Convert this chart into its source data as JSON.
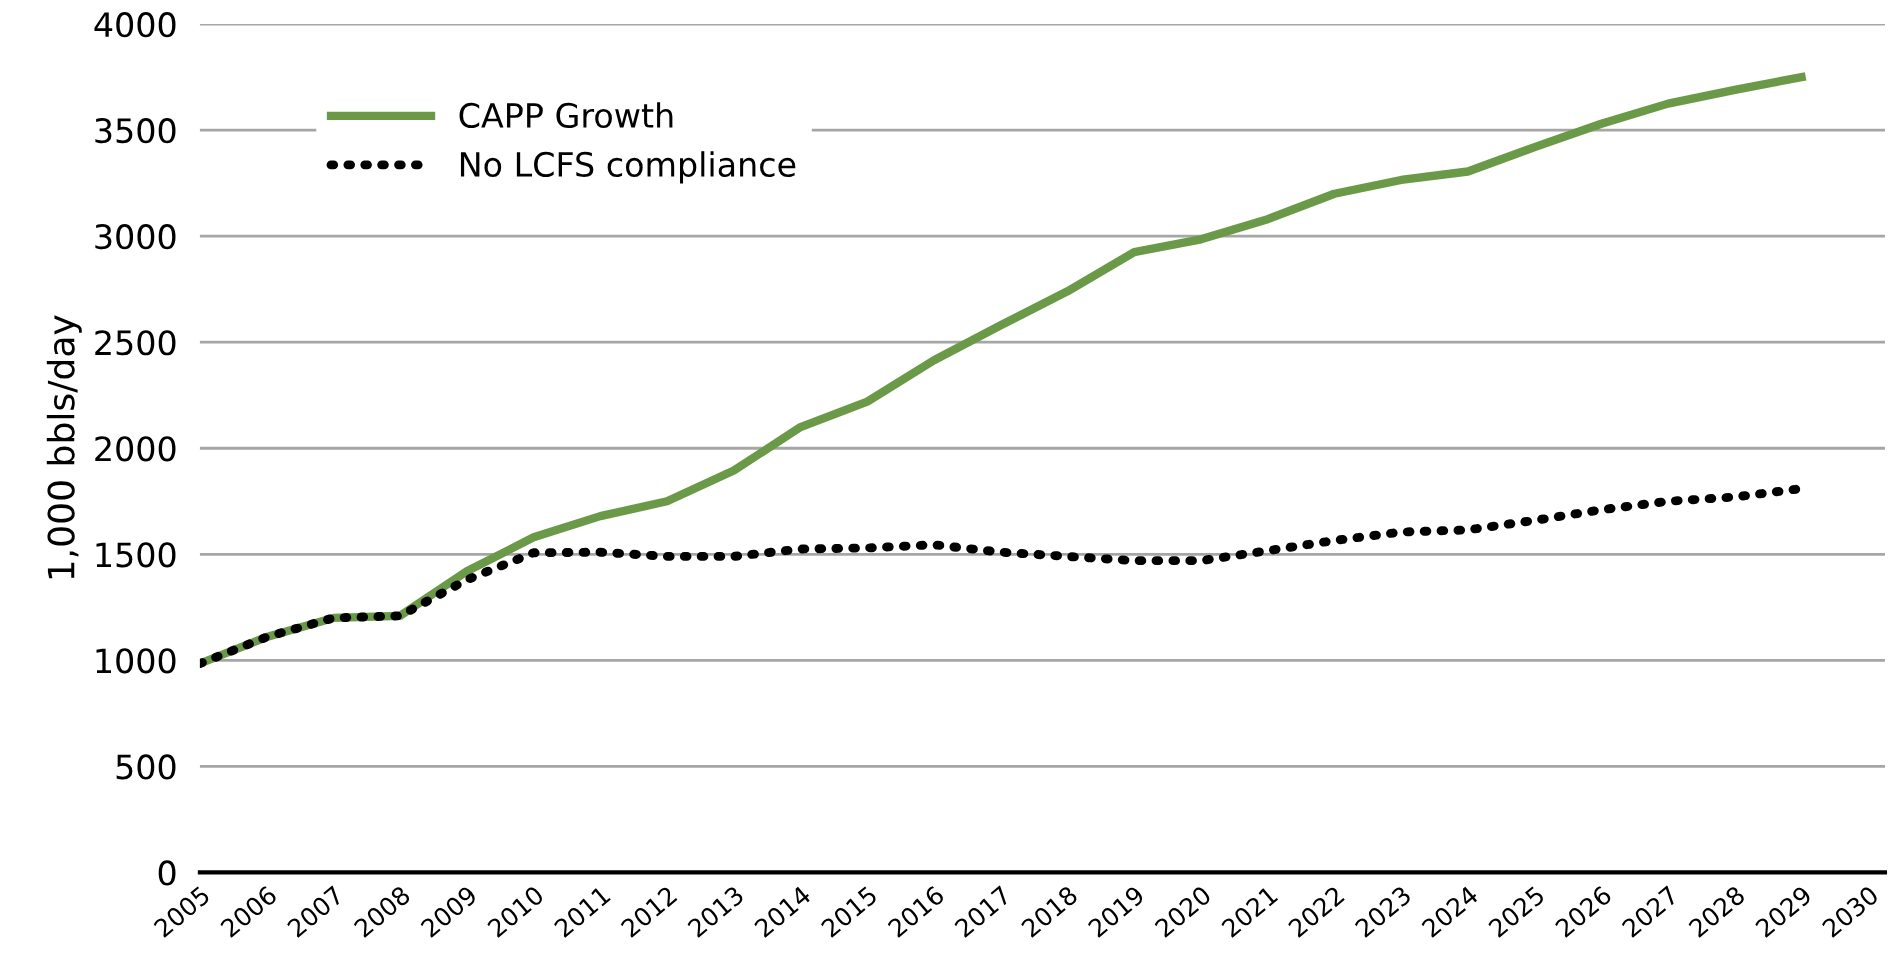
{
  "chart_data": {
    "type": "line",
    "ylabel": "1,000 bbls/day",
    "categories": [
      "2005",
      "2006",
      "2007",
      "2008",
      "2009",
      "2010",
      "2011",
      "2012",
      "2013",
      "2014",
      "2015",
      "2016",
      "2017",
      "2018",
      "2019",
      "2020",
      "2021",
      "2022",
      "2023",
      "2024",
      "2025",
      "2026",
      "2027",
      "2028",
      "2029",
      "2030"
    ],
    "series": [
      {
        "name": "CAPP Growth",
        "color": "#6a9a48",
        "line_style": "solid",
        "values": [
          985,
          1110,
          1200,
          1210,
          1420,
          1580,
          1680,
          1750,
          1895,
          2100,
          2220,
          2415,
          2580,
          2740,
          2925,
          2985,
          3080,
          3200,
          3265,
          3305,
          3420,
          3530,
          3625,
          3690,
          3750,
          null
        ]
      },
      {
        "name": "No LCFS compliance",
        "color": "#000000",
        "line_style": "dotted",
        "values": [
          985,
          1110,
          1200,
          1210,
          1380,
          1507,
          1510,
          1490,
          1490,
          1525,
          1530,
          1545,
          1510,
          1490,
          1470,
          1470,
          1517,
          1565,
          1605,
          1615,
          1660,
          1710,
          1750,
          1770,
          1810,
          null
        ]
      }
    ],
    "ylim": [
      0,
      4000
    ],
    "yticks": [
      0,
      500,
      1000,
      1500,
      2000,
      2500,
      3000,
      3500,
      4000
    ],
    "grid": "y",
    "legend": "top left"
  }
}
